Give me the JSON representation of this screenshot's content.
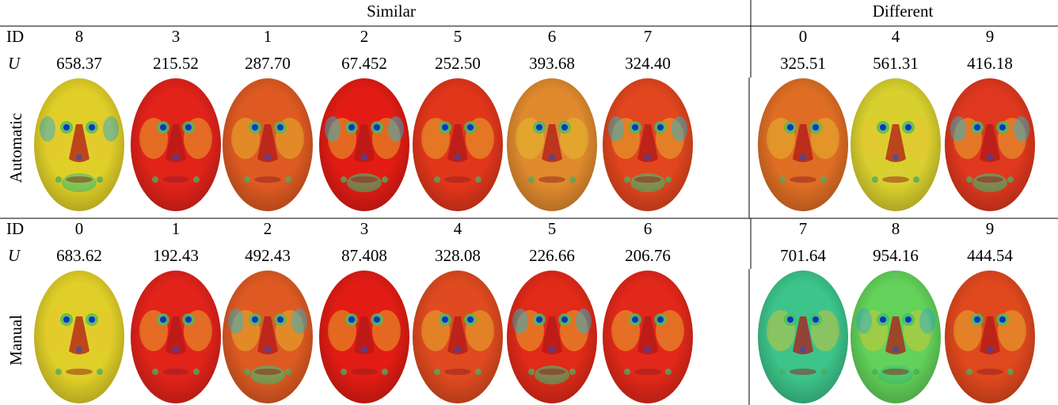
{
  "header": {
    "groups": [
      "Similar",
      "Different"
    ]
  },
  "sections": [
    {
      "label": "Automatic",
      "id_label": "ID",
      "u_label": "U",
      "ids": [
        "8",
        "3",
        "1",
        "2",
        "5",
        "6",
        "7",
        "0",
        "4",
        "9"
      ],
      "u_values": [
        "658.37",
        "215.52",
        "287.70",
        "67.452",
        "252.50",
        "393.68",
        "324.40",
        "325.51",
        "561.31",
        "416.18"
      ]
    },
    {
      "label": "Manual",
      "id_label": "ID",
      "u_label": "U",
      "ids": [
        "0",
        "1",
        "2",
        "3",
        "4",
        "5",
        "6",
        "7",
        "8",
        "9"
      ],
      "u_values": [
        "683.62",
        "192.43",
        "492.43",
        "87.408",
        "328.08",
        "226.66",
        "206.76",
        "701.64",
        "954.16",
        "444.54"
      ]
    }
  ]
}
